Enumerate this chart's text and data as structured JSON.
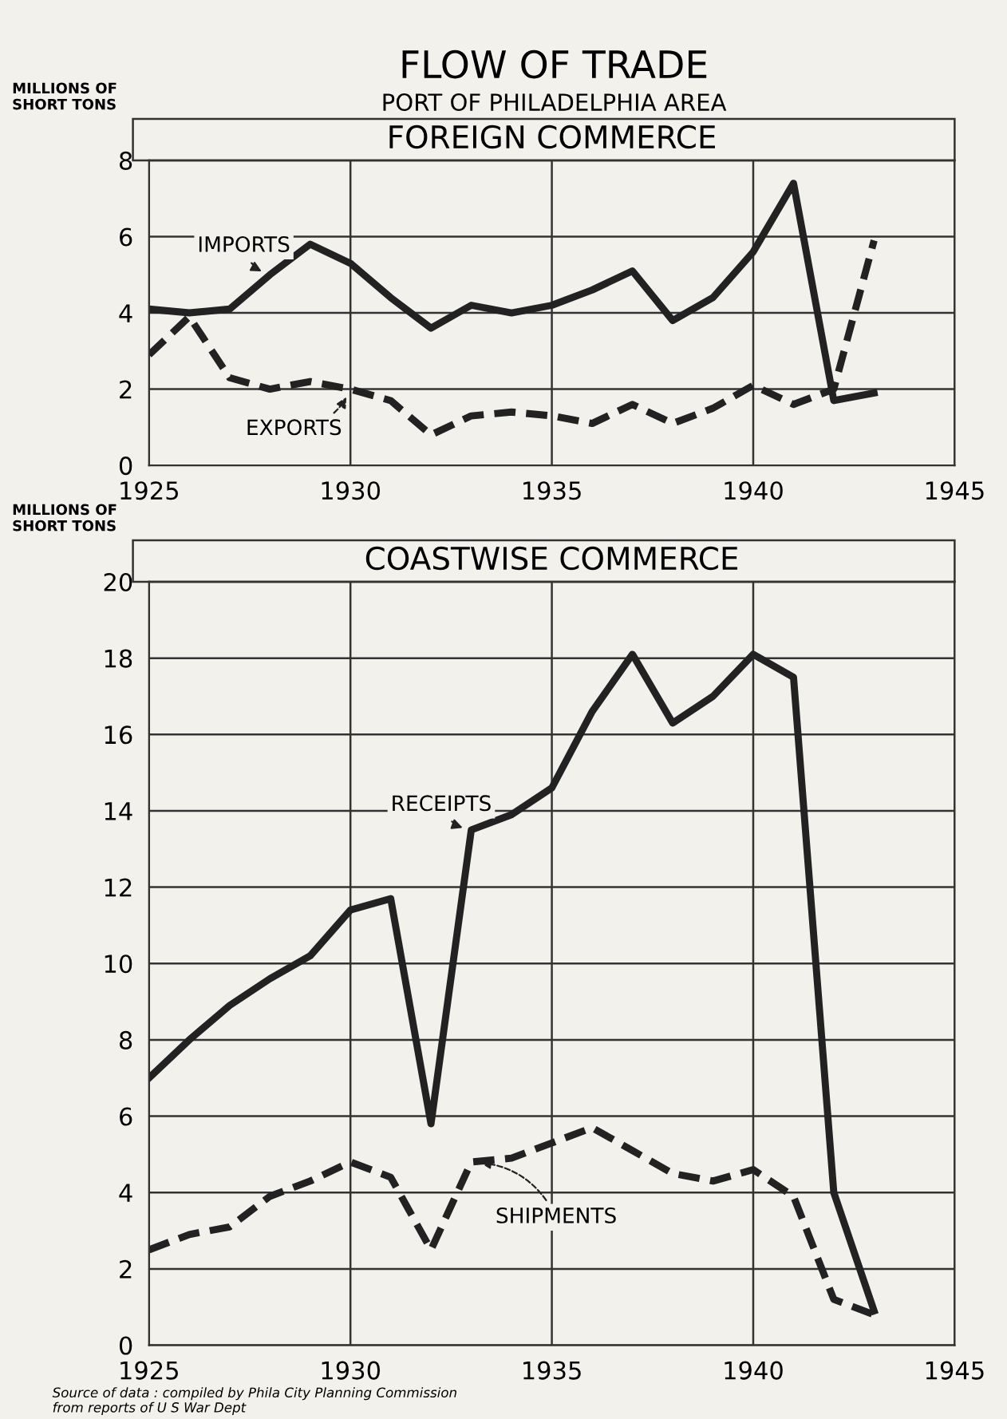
{
  "chart_data": [
    {
      "type": "line",
      "title": "FLOW OF TRADE",
      "subtitle": "PORT OF PHILADELPHIA AREA",
      "annotations": [
        "FOREIGN COMMERCE"
      ],
      "xlim": [
        1925,
        1945
      ],
      "xticks": [
        1925,
        1930,
        1935,
        1940,
        1945
      ],
      "ylim": [
        0,
        8
      ],
      "yticks": [
        0,
        2,
        4,
        6,
        8
      ],
      "ylabel": "MILLIONS OF\nSHORT TONS",
      "grid": true,
      "legend": "left",
      "x": [
        1925,
        1926,
        1927,
        1928,
        1929,
        1930,
        1931,
        1932,
        1933,
        1934,
        1935,
        1936,
        1937,
        1938,
        1939,
        1940,
        1941,
        1942,
        1943
      ],
      "series": [
        {
          "name": "IMPORTS",
          "color": "#222222",
          "line_style": "solid",
          "values": [
            4.1,
            4.0,
            4.1,
            5.0,
            5.8,
            5.3,
            4.4,
            3.6,
            4.2,
            4.0,
            4.2,
            4.6,
            5.1,
            3.8,
            4.4,
            5.6,
            7.4,
            1.7,
            1.9
          ]
        },
        {
          "name": "EXPORTS",
          "color": "#222222",
          "line_style": "dashed",
          "values": [
            2.9,
            3.9,
            2.3,
            2.0,
            2.2,
            2.0,
            1.7,
            0.8,
            1.3,
            1.4,
            1.3,
            1.1,
            1.6,
            1.1,
            1.5,
            2.1,
            1.6,
            2.0,
            5.9
          ]
        }
      ]
    },
    {
      "type": "line",
      "title": "COASTWISE COMMERCE",
      "xlim": [
        1925,
        1945
      ],
      "xticks": [
        1925,
        1930,
        1935,
        1940,
        1945
      ],
      "ylim": [
        0,
        20
      ],
      "yticks": [
        0,
        2,
        4,
        6,
        8,
        10,
        12,
        14,
        16,
        18,
        20
      ],
      "ylabel": "MILLIONS OF\nSHORT TONS",
      "grid": true,
      "legend": "center",
      "x": [
        1925,
        1926,
        1927,
        1928,
        1929,
        1930,
        1931,
        1932,
        1933,
        1934,
        1935,
        1936,
        1937,
        1938,
        1939,
        1940,
        1941,
        1942,
        1943
      ],
      "series": [
        {
          "name": "RECEIPTS",
          "color": "#222222",
          "line_style": "solid",
          "values": [
            7.0,
            8.0,
            8.9,
            9.6,
            10.2,
            11.4,
            11.7,
            5.8,
            13.5,
            13.9,
            14.6,
            16.6,
            18.1,
            16.3,
            17.0,
            18.1,
            17.5,
            4.0,
            0.9
          ]
        },
        {
          "name": "SHIPMENTS",
          "color": "#222222",
          "line_style": "dashed",
          "values": [
            2.5,
            2.9,
            3.1,
            3.9,
            4.3,
            4.8,
            4.4,
            2.5,
            4.8,
            4.9,
            5.3,
            5.7,
            5.1,
            4.5,
            4.3,
            4.6,
            3.9,
            1.2,
            0.8
          ]
        }
      ],
      "annotations": [
        "Source of data : compiled by Phila City Planning Commission\nfrom reports of U S War Dept"
      ]
    }
  ]
}
